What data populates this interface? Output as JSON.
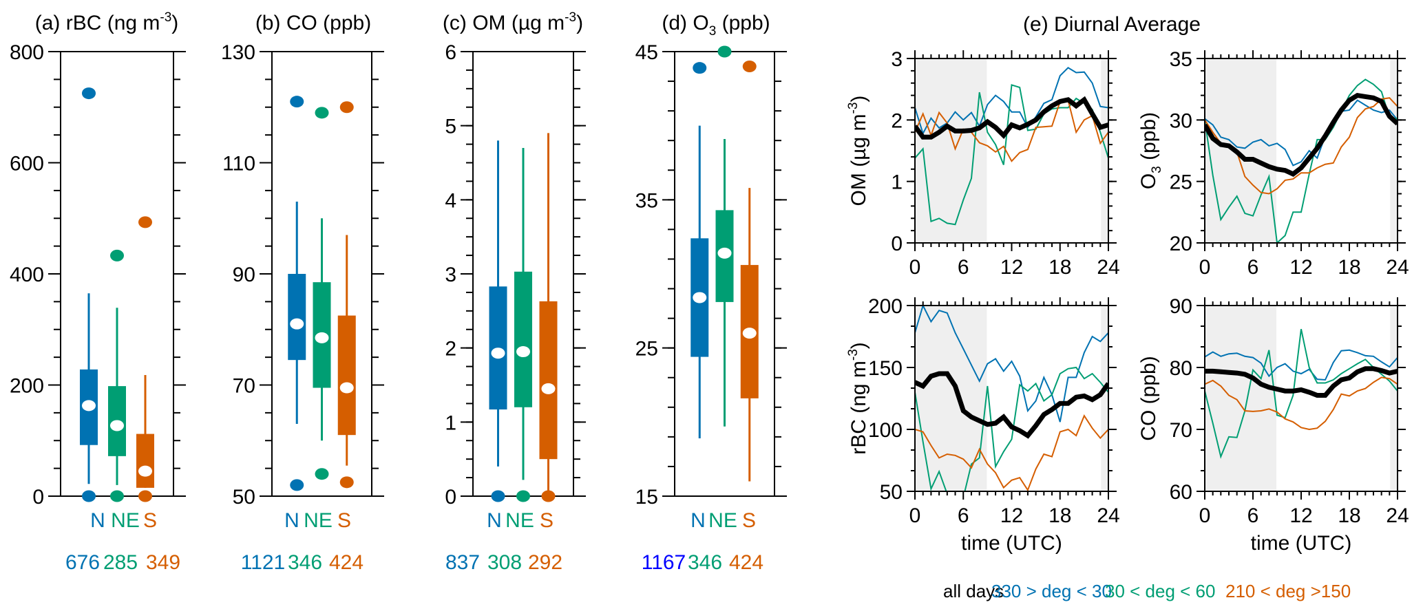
{
  "colors": {
    "N": "#0072B2",
    "NE": "#009E73",
    "S": "#D55E00",
    "all": "#000000",
    "count_blue_alt": "#0000FF",
    "night_shade": "#EFEFEF"
  },
  "chart_data": [
    {
      "type": "box",
      "panel": "a",
      "title": "(a) rBC (ng m",
      "title_sup": "-3",
      "title_tail": ")",
      "ylim": [
        0,
        800
      ],
      "yticks": [
        0,
        200,
        400,
        600,
        800
      ],
      "minor_step": 50,
      "categories": [
        "N",
        "NE",
        "S"
      ],
      "counts": [
        "676",
        "285",
        "349"
      ],
      "count_colors": [
        "N",
        "NE",
        "S"
      ],
      "boxes": [
        {
          "name": "N",
          "whisker_low": 22,
          "q1": 92,
          "median": 163,
          "q3": 228,
          "whisker_high": 365,
          "outliers": [
            725,
            0
          ]
        },
        {
          "name": "NE",
          "whisker_low": 20,
          "q1": 72,
          "median": 127,
          "q3": 198,
          "whisker_high": 339,
          "outliers": [
            433,
            0
          ]
        },
        {
          "name": "S",
          "whisker_low": 15,
          "q1": 15,
          "median": 45,
          "q3": 112,
          "whisker_high": 218,
          "outliers": [
            493,
            0
          ]
        }
      ]
    },
    {
      "type": "box",
      "panel": "b",
      "title": "(b) CO (ppb)",
      "title_sup": "",
      "title_tail": "",
      "ylim": [
        50,
        130
      ],
      "yticks": [
        50,
        70,
        90,
        110,
        130
      ],
      "minor_step": 5,
      "categories": [
        "N",
        "NE",
        "S"
      ],
      "counts": [
        "1121",
        "346",
        "424"
      ],
      "count_colors": [
        "N",
        "NE",
        "S"
      ],
      "boxes": [
        {
          "name": "N",
          "whisker_low": 63,
          "q1": 74.5,
          "median": 81,
          "q3": 90,
          "whisker_high": 103,
          "outliers": [
            121,
            52
          ]
        },
        {
          "name": "NE",
          "whisker_low": 60,
          "q1": 69.5,
          "median": 78.5,
          "q3": 88.5,
          "whisker_high": 100,
          "outliers": [
            119,
            54
          ]
        },
        {
          "name": "S",
          "whisker_low": 55.5,
          "q1": 61,
          "median": 69.5,
          "q3": 82.5,
          "whisker_high": 97,
          "outliers": [
            120,
            52.5
          ]
        }
      ]
    },
    {
      "type": "box",
      "panel": "c",
      "title": "(c) OM (µg m",
      "title_sup": "-3",
      "title_tail": ")",
      "ylim": [
        0,
        6
      ],
      "yticks": [
        0,
        1,
        2,
        3,
        4,
        5,
        6
      ],
      "minor_step": 0.25,
      "categories": [
        "N",
        "NE",
        "S"
      ],
      "counts": [
        "837",
        "308",
        "292"
      ],
      "count_colors": [
        "N",
        "NE",
        "S"
      ],
      "boxes": [
        {
          "name": "N",
          "whisker_low": 0.4,
          "q1": 1.17,
          "median": 1.93,
          "q3": 2.83,
          "whisker_high": 4.8,
          "outliers": [
            0
          ]
        },
        {
          "name": "NE",
          "whisker_low": 0.22,
          "q1": 1.2,
          "median": 1.95,
          "q3": 3.03,
          "whisker_high": 4.7,
          "outliers": [
            0
          ]
        },
        {
          "name": "S",
          "whisker_low": 0.0,
          "q1": 0.5,
          "median": 1.45,
          "q3": 2.63,
          "whisker_high": 4.9,
          "outliers": [
            0
          ]
        }
      ]
    },
    {
      "type": "box",
      "panel": "d",
      "title": "(d) O",
      "title_sub": "3",
      "title_tail": " (ppb)",
      "ylim": [
        15,
        45
      ],
      "yticks": [
        15,
        25,
        35,
        45
      ],
      "minor_step": 2,
      "categories": [
        "N",
        "NE",
        "S"
      ],
      "counts": [
        "1167",
        "346",
        "424"
      ],
      "count_colors": [
        "blue_alt",
        "NE",
        "S"
      ],
      "boxes": [
        {
          "name": "N",
          "whisker_low": 18.9,
          "q1": 24.4,
          "median": 28.4,
          "q3": 32.4,
          "whisker_high": 40,
          "outliers": [
            43.9
          ]
        },
        {
          "name": "NE",
          "whisker_low": 19.7,
          "q1": 28.1,
          "median": 31.4,
          "q3": 34.3,
          "whisker_high": 39.1,
          "outliers": [
            45
          ]
        },
        {
          "name": "S",
          "whisker_low": 16,
          "q1": 21.6,
          "median": 26,
          "q3": 30.6,
          "whisker_high": 35.8,
          "outliers": [
            44
          ]
        }
      ]
    },
    {
      "type": "line",
      "panel": "e-OM",
      "ylabel": "OM (µg m",
      "ylabel_sup": "-3",
      "ylabel_tail": ")",
      "xlabel": "",
      "xlim": [
        0,
        24
      ],
      "xticks": [
        0,
        6,
        12,
        18,
        24
      ],
      "ylim": [
        0,
        3
      ],
      "yticks": [
        0,
        1,
        2,
        3
      ],
      "minor_step": 0.2,
      "night_shading": [
        [
          0,
          9
        ],
        [
          23,
          24
        ]
      ],
      "x": [
        0,
        1,
        2,
        3,
        4,
        5,
        6,
        7,
        8,
        9,
        10,
        11,
        12,
        13,
        14,
        15,
        16,
        17,
        18,
        19,
        20,
        21,
        22,
        23,
        24
      ],
      "series": [
        {
          "name": "N",
          "values": [
            2.2,
            1.78,
            2.03,
            1.87,
            1.95,
            2.13,
            2.0,
            2.12,
            1.9,
            2.25,
            2.4,
            2.3,
            2.13,
            2.13,
            1.88,
            2.05,
            2.27,
            2.33,
            2.72,
            2.85,
            2.77,
            2.78,
            2.6,
            2.22,
            2.2
          ]
        },
        {
          "name": "NE",
          "values": [
            1.38,
            1.53,
            0.35,
            0.4,
            0.32,
            0.3,
            0.7,
            1.05,
            2.45,
            1.8,
            1.6,
            1.27,
            2.57,
            2.53,
            1.83,
            1.85,
            2.1,
            2.18,
            2.2,
            2.2,
            2.35,
            2.27,
            2.17,
            1.8,
            1.38
          ]
        },
        {
          "name": "S",
          "values": [
            1.8,
            2.1,
            1.75,
            2.12,
            1.95,
            1.53,
            1.85,
            1.8,
            1.63,
            1.58,
            1.48,
            1.57,
            1.33,
            1.47,
            1.52,
            1.88,
            1.89,
            1.9,
            2.3,
            2.32,
            1.8,
            2.0,
            2.07,
            1.62,
            1.8
          ]
        },
        {
          "name": "all",
          "values": [
            1.9,
            1.72,
            1.72,
            1.8,
            1.9,
            1.82,
            1.82,
            1.83,
            1.87,
            1.97,
            1.88,
            1.75,
            1.92,
            1.87,
            1.93,
            2.0,
            2.13,
            2.23,
            2.3,
            2.33,
            2.23,
            2.33,
            2.1,
            1.88,
            1.92
          ]
        }
      ]
    },
    {
      "type": "line",
      "panel": "e-O3",
      "ylabel": "O",
      "ylabel_sub": "3",
      "ylabel_tail": " (ppb)",
      "xlabel": "",
      "xlim": [
        0,
        24
      ],
      "xticks": [
        0,
        6,
        12,
        18,
        24
      ],
      "ylim": [
        20,
        35
      ],
      "yticks": [
        20,
        25,
        30,
        35
      ],
      "minor_step": 1,
      "night_shading": [
        [
          0,
          9
        ],
        [
          23,
          24
        ]
      ],
      "x": [
        0,
        1,
        2,
        3,
        4,
        5,
        6,
        7,
        8,
        9,
        10,
        11,
        12,
        13,
        14,
        15,
        16,
        17,
        18,
        19,
        20,
        21,
        22,
        23,
        24
      ],
      "series": [
        {
          "name": "N",
          "values": [
            30.1,
            29.6,
            28.6,
            28.4,
            27.8,
            27.7,
            28.2,
            28.4,
            27.9,
            28.1,
            27.6,
            26.3,
            26.6,
            27.5,
            26.9,
            28.7,
            29.8,
            30.7,
            30.8,
            31.6,
            31.2,
            30.8,
            30.6,
            30.8,
            30.0
          ]
        },
        {
          "name": "NE",
          "values": [
            30.0,
            25.5,
            21.9,
            22.9,
            23.8,
            22.4,
            22.2,
            23.9,
            25.4,
            20.0,
            20.6,
            22.5,
            22.5,
            25.6,
            28.4,
            28.4,
            29.4,
            30.7,
            32.0,
            32.8,
            33.3,
            32.9,
            32.3,
            30.2,
            30.1
          ]
        },
        {
          "name": "S",
          "values": [
            30.0,
            29.0,
            28.1,
            28.0,
            27.4,
            25.4,
            24.7,
            24.1,
            24.0,
            24.4,
            25.1,
            25.2,
            25.7,
            25.7,
            26.1,
            26.4,
            26.5,
            27.8,
            28.6,
            30.2,
            30.9,
            31.1,
            31.7,
            31.8,
            31.1
          ]
        },
        {
          "name": "all",
          "values": [
            29.6,
            28.5,
            28.0,
            27.9,
            27.4,
            26.8,
            26.8,
            26.5,
            26.2,
            26.0,
            25.9,
            25.6,
            26.1,
            26.9,
            27.7,
            28.7,
            29.8,
            30.8,
            31.6,
            32.0,
            31.9,
            31.8,
            31.5,
            30.3,
            29.7
          ]
        }
      ]
    },
    {
      "type": "line",
      "panel": "e-rBC",
      "ylabel": "rBC (ng m",
      "ylabel_sup": "-3",
      "ylabel_tail": ")",
      "xlabel": "time (UTC)",
      "xlim": [
        0,
        24
      ],
      "xticks": [
        0,
        6,
        12,
        18,
        24
      ],
      "ylim": [
        50,
        200
      ],
      "yticks": [
        50,
        100,
        150,
        200
      ],
      "minor_step": 16.67,
      "night_shading": [
        [
          0,
          9
        ],
        [
          23,
          24
        ]
      ],
      "x": [
        0,
        1,
        2,
        3,
        4,
        5,
        6,
        7,
        8,
        9,
        10,
        11,
        12,
        13,
        14,
        15,
        16,
        17,
        18,
        19,
        20,
        21,
        22,
        23,
        24
      ],
      "series": [
        {
          "name": "N",
          "values": [
            178,
            200,
            187,
            196,
            194,
            178,
            165,
            152,
            139,
            153,
            157,
            147,
            155,
            143,
            115,
            123,
            142,
            128,
            106,
            142,
            142,
            162,
            175,
            171,
            178
          ]
        },
        {
          "name": "NE",
          "values": [
            130,
            90,
            52,
            66,
            48,
            40,
            45,
            72,
            77,
            135,
            70,
            82,
            92,
            136,
            131,
            137,
            123,
            128,
            145,
            149,
            150,
            141,
            145,
            138,
            130
          ]
        },
        {
          "name": "S",
          "values": [
            100,
            98,
            87,
            77,
            80,
            79,
            76,
            69,
            84,
            72,
            65,
            53,
            59,
            61,
            51,
            68,
            80,
            78,
            98,
            100,
            95,
            111,
            101,
            93,
            100
          ]
        },
        {
          "name": "all",
          "values": [
            138,
            135,
            143,
            145,
            145,
            135,
            115,
            110,
            107,
            104,
            105,
            110,
            102,
            99,
            95,
            103,
            112,
            116,
            121,
            121,
            126,
            127,
            124,
            128,
            137
          ]
        }
      ]
    },
    {
      "type": "line",
      "panel": "e-CO",
      "ylabel": "CO (ppb)",
      "ylabel_sup": "",
      "ylabel_tail": "",
      "xlabel": "time (UTC)",
      "xlim": [
        0,
        24
      ],
      "xticks": [
        0,
        6,
        12,
        18,
        24
      ],
      "ylim": [
        60,
        90
      ],
      "yticks": [
        60,
        70,
        80,
        90
      ],
      "minor_step": 3.33,
      "night_shading": [
        [
          0,
          9
        ],
        [
          23,
          24
        ]
      ],
      "x": [
        0,
        1,
        2,
        3,
        4,
        5,
        6,
        7,
        8,
        9,
        10,
        11,
        12,
        13,
        14,
        15,
        16,
        17,
        18,
        19,
        20,
        21,
        22,
        23,
        24
      ],
      "series": [
        {
          "name": "N",
          "values": [
            81.7,
            82.5,
            81.8,
            82.2,
            82.3,
            81.8,
            81.6,
            80.7,
            78.6,
            80.0,
            80.6,
            79.4,
            79.0,
            79.7,
            78.1,
            78.0,
            80.8,
            82.7,
            82.8,
            82.4,
            81.9,
            81.8,
            80.9,
            80.1,
            81.6
          ]
        },
        {
          "name": "NE",
          "values": [
            76.2,
            71.0,
            65.6,
            68.8,
            68.7,
            73.0,
            79.6,
            78.2,
            82.8,
            72.3,
            71.9,
            75.5,
            86.2,
            80.0,
            77.5,
            77.5,
            78.0,
            79.0,
            79.8,
            80.6,
            81.3,
            80.0,
            78.9,
            77.8,
            76.2
          ]
        },
        {
          "name": "S",
          "values": [
            77.3,
            77.9,
            77.0,
            75.5,
            74.8,
            73.0,
            72.9,
            73.0,
            73.3,
            72.8,
            71.7,
            71.2,
            70.3,
            70.0,
            70.2,
            71.3,
            73.2,
            75.7,
            75.4,
            76.2,
            76.6,
            77.6,
            78.4,
            78.2,
            77.3
          ]
        },
        {
          "name": "all",
          "values": [
            79.4,
            79.4,
            79.3,
            79.2,
            79.1,
            78.9,
            78.3,
            77.3,
            76.8,
            76.5,
            76.2,
            76.2,
            76.4,
            76.0,
            75.5,
            75.5,
            77.0,
            78.0,
            78.3,
            79.3,
            79.8,
            79.8,
            79.5,
            79.1,
            79.4
          ]
        }
      ]
    }
  ],
  "diurnal": {
    "title": "(e) Diurnal Average",
    "legend": [
      {
        "label": "all days",
        "series": "all"
      },
      {
        "label": "330 > deg < 30",
        "series": "N"
      },
      {
        "label": "30 < deg < 60",
        "series": "NE"
      },
      {
        "label": "210 < deg >150",
        "series": "S"
      }
    ]
  }
}
